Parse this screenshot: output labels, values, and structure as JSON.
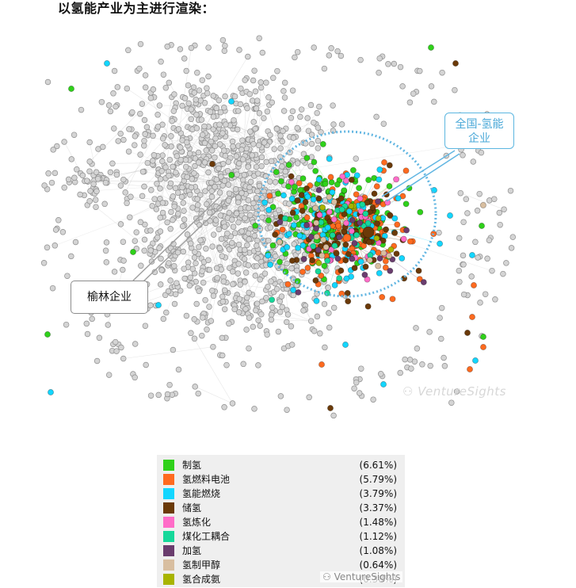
{
  "heading": "以氢能产业为主进行渲染：",
  "callouts": {
    "yulin": "榆林企业",
    "national_line1": "全国-氢能",
    "national_line2": "企业"
  },
  "watermark": "VentureSights",
  "watermark_bottom": "VentureSights",
  "colors": {
    "background_node": "#d4d4d4",
    "background_node_stroke": "#8e8e8e",
    "edge": "#c9c9c9",
    "highlight_ellipse": "#62b6e2",
    "callout_yulin_border": "#8c8c8c"
  },
  "chart_data": {
    "type": "network",
    "title": "",
    "legend_position": "bottom",
    "categories": [
      {
        "name": "制氢",
        "share": "(6.61%)",
        "color": "#2fd11a"
      },
      {
        "name": "氢燃料电池",
        "share": "(5.79%)",
        "color": "#ff6a1f"
      },
      {
        "name": "氢能燃烧",
        "share": "(3.79%)",
        "color": "#13d6ff"
      },
      {
        "name": "储氢",
        "share": "(3.37%)",
        "color": "#6b3a08"
      },
      {
        "name": "氢炼化",
        "share": "(1.48%)",
        "color": "#ff6cc8"
      },
      {
        "name": "煤化工耦合",
        "share": "(1.12%)",
        "color": "#16d89a"
      },
      {
        "name": "加氢",
        "share": "(1.08%)",
        "color": "#6a3d6e"
      },
      {
        "name": "氢制甲醇",
        "share": "(0.64%)",
        "color": "#d8bea0"
      },
      {
        "name": "氢合成氨",
        "share": "(0.38%)",
        "color": "#a8b400"
      }
    ],
    "other_node_color": "#d4d4d4"
  }
}
